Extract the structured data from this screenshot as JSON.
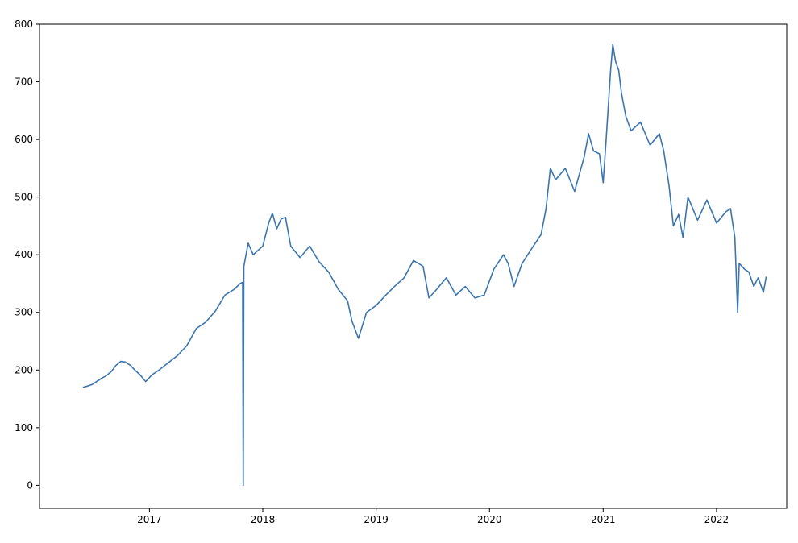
{
  "chart_data": {
    "type": "line",
    "title": "",
    "xlabel": "",
    "ylabel": "",
    "grid": false,
    "legend": "none",
    "xlim": [
      "2016-01-13",
      "2022-08-15"
    ],
    "ylim": [
      -40,
      800
    ],
    "x_ticks": [
      {
        "date": "2017-01-01",
        "label": "2017"
      },
      {
        "date": "2018-01-01",
        "label": "2018"
      },
      {
        "date": "2019-01-01",
        "label": "2019"
      },
      {
        "date": "2020-01-01",
        "label": "2020"
      },
      {
        "date": "2021-01-01",
        "label": "2021"
      },
      {
        "date": "2022-01-01",
        "label": "2022"
      }
    ],
    "y_ticks": [
      0,
      100,
      200,
      300,
      400,
      500,
      600,
      700,
      800
    ],
    "series": [
      {
        "color": "#3b75af",
        "points": [
          [
            "2016-06-01",
            170
          ],
          [
            "2016-06-15",
            172
          ],
          [
            "2016-07-01",
            175
          ],
          [
            "2016-07-15",
            180
          ],
          [
            "2016-08-01",
            186
          ],
          [
            "2016-08-15",
            190
          ],
          [
            "2016-09-01",
            198
          ],
          [
            "2016-09-15",
            208
          ],
          [
            "2016-10-01",
            215
          ],
          [
            "2016-10-15",
            214
          ],
          [
            "2016-11-01",
            208
          ],
          [
            "2016-11-15",
            200
          ],
          [
            "2016-12-01",
            192
          ],
          [
            "2016-12-20",
            180
          ],
          [
            "2017-01-10",
            192
          ],
          [
            "2017-02-01",
            200
          ],
          [
            "2017-03-01",
            212
          ],
          [
            "2017-04-01",
            225
          ],
          [
            "2017-05-01",
            242
          ],
          [
            "2017-06-01",
            272
          ],
          [
            "2017-07-01",
            283
          ],
          [
            "2017-08-01",
            302
          ],
          [
            "2017-09-01",
            330
          ],
          [
            "2017-10-01",
            340
          ],
          [
            "2017-10-20",
            350
          ],
          [
            "2017-10-28",
            352
          ],
          [
            "2017-10-30",
            0
          ],
          [
            "2017-11-01",
            380
          ],
          [
            "2017-11-15",
            420
          ],
          [
            "2017-12-01",
            400
          ],
          [
            "2018-01-01",
            415
          ],
          [
            "2018-01-20",
            455
          ],
          [
            "2018-02-01",
            472
          ],
          [
            "2018-02-15",
            445
          ],
          [
            "2018-03-01",
            462
          ],
          [
            "2018-03-15",
            465
          ],
          [
            "2018-04-01",
            415
          ],
          [
            "2018-05-01",
            395
          ],
          [
            "2018-06-01",
            415
          ],
          [
            "2018-07-01",
            388
          ],
          [
            "2018-08-01",
            370
          ],
          [
            "2018-09-01",
            340
          ],
          [
            "2018-10-01",
            320
          ],
          [
            "2018-10-15",
            285
          ],
          [
            "2018-11-05",
            255
          ],
          [
            "2018-12-01",
            300
          ],
          [
            "2019-01-01",
            312
          ],
          [
            "2019-02-01",
            330
          ],
          [
            "2019-03-01",
            345
          ],
          [
            "2019-04-01",
            360
          ],
          [
            "2019-05-01",
            390
          ],
          [
            "2019-06-01",
            380
          ],
          [
            "2019-06-20",
            325
          ],
          [
            "2019-07-15",
            340
          ],
          [
            "2019-08-15",
            360
          ],
          [
            "2019-09-15",
            330
          ],
          [
            "2019-10-15",
            345
          ],
          [
            "2019-11-15",
            325
          ],
          [
            "2019-12-15",
            330
          ],
          [
            "2020-01-15",
            375
          ],
          [
            "2020-02-15",
            400
          ],
          [
            "2020-03-01",
            385
          ],
          [
            "2020-03-20",
            345
          ],
          [
            "2020-04-15",
            385
          ],
          [
            "2020-05-15",
            410
          ],
          [
            "2020-06-15",
            435
          ],
          [
            "2020-07-01",
            480
          ],
          [
            "2020-07-15",
            550
          ],
          [
            "2020-08-01",
            530
          ],
          [
            "2020-09-01",
            550
          ],
          [
            "2020-10-01",
            510
          ],
          [
            "2020-11-01",
            570
          ],
          [
            "2020-11-15",
            610
          ],
          [
            "2020-12-01",
            580
          ],
          [
            "2020-12-20",
            575
          ],
          [
            "2021-01-01",
            525
          ],
          [
            "2021-01-10",
            595
          ],
          [
            "2021-01-25",
            720
          ],
          [
            "2021-02-01",
            765
          ],
          [
            "2021-02-10",
            735
          ],
          [
            "2021-02-20",
            720
          ],
          [
            "2021-03-01",
            680
          ],
          [
            "2021-03-15",
            640
          ],
          [
            "2021-04-01",
            615
          ],
          [
            "2021-05-01",
            630
          ],
          [
            "2021-06-01",
            590
          ],
          [
            "2021-07-01",
            610
          ],
          [
            "2021-07-15",
            580
          ],
          [
            "2021-08-01",
            520
          ],
          [
            "2021-08-15",
            450
          ],
          [
            "2021-09-01",
            470
          ],
          [
            "2021-09-15",
            430
          ],
          [
            "2021-10-01",
            500
          ],
          [
            "2021-11-01",
            460
          ],
          [
            "2021-12-01",
            495
          ],
          [
            "2022-01-01",
            455
          ],
          [
            "2022-02-01",
            475
          ],
          [
            "2022-02-15",
            480
          ],
          [
            "2022-03-01",
            430
          ],
          [
            "2022-03-10",
            300
          ],
          [
            "2022-03-15",
            385
          ],
          [
            "2022-04-01",
            375
          ],
          [
            "2022-04-15",
            370
          ],
          [
            "2022-05-01",
            345
          ],
          [
            "2022-05-15",
            360
          ],
          [
            "2022-06-01",
            335
          ],
          [
            "2022-06-10",
            362
          ]
        ]
      }
    ]
  }
}
